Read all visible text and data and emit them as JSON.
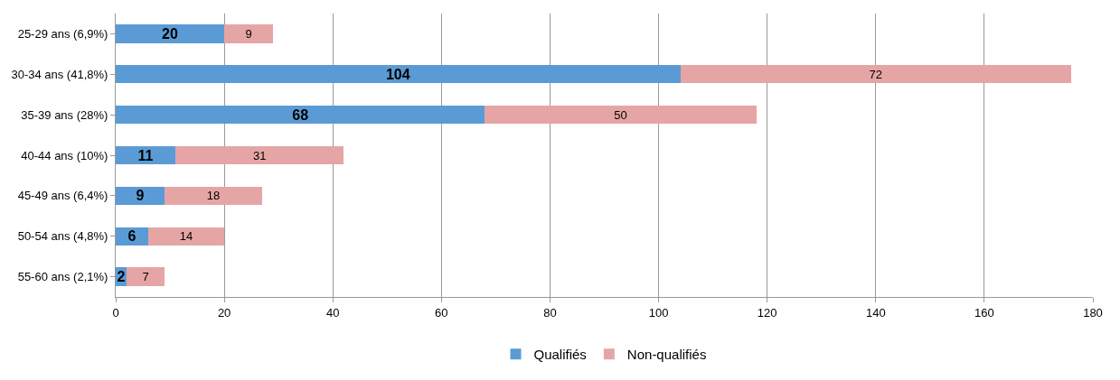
{
  "chart_data": {
    "type": "bar",
    "orientation": "horizontal",
    "stacked": true,
    "categories": [
      "25-29 ans (6,9%)",
      "30-34 ans (41,8%)",
      "35-39 ans (28%)",
      "40-44 ans (10%)",
      "45-49 ans (6,4%)",
      "50-54 ans (4,8%)",
      "55-60 ans (2,1%)"
    ],
    "series": [
      {
        "name": "Qualifiés",
        "color": "#5b9bd5",
        "values": [
          20,
          104,
          68,
          11,
          9,
          6,
          2
        ]
      },
      {
        "name": "Non-qualifiés",
        "color": "#e6a5a5",
        "values": [
          9,
          72,
          50,
          31,
          18,
          14,
          7
        ]
      }
    ],
    "xlim": [
      0,
      180
    ],
    "xticks": [
      0,
      20,
      40,
      60,
      80,
      100,
      120,
      140,
      160,
      180
    ],
    "grid": "x",
    "legend": "bottom",
    "data_labels": true
  }
}
